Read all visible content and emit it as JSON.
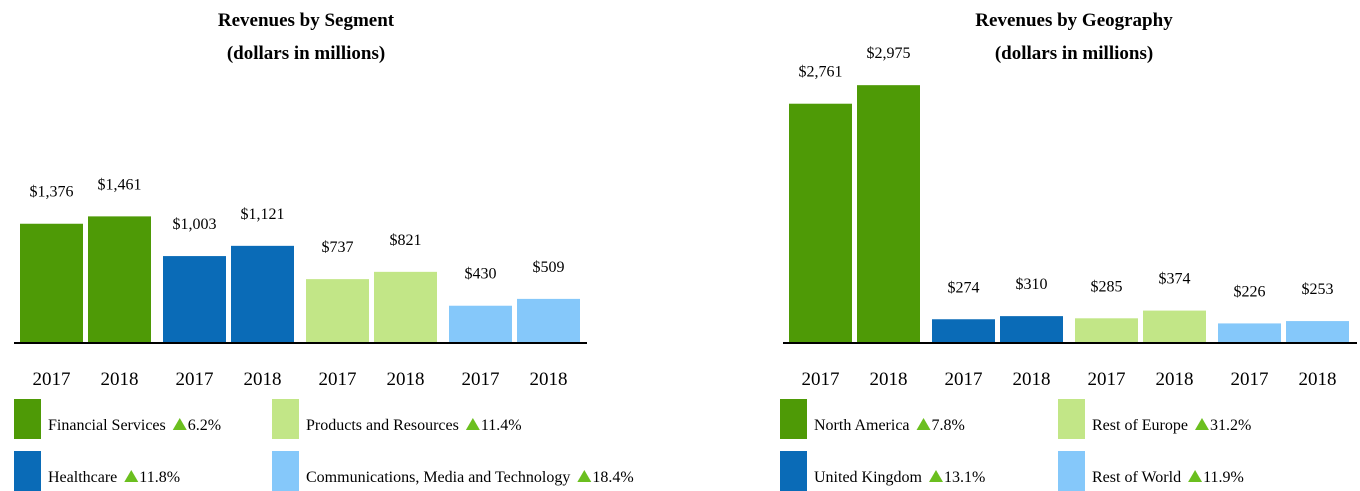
{
  "chart_data": [
    {
      "type": "bar",
      "title_line1": "Revenues by Segment",
      "title_line2": "(dollars in millions)",
      "years": [
        "2017",
        "2018"
      ],
      "ylim": [
        0,
        3000
      ],
      "series": [
        {
          "name": "Financial Services",
          "color": "#4E9A06",
          "values": [
            1376,
            1461
          ],
          "labels": [
            "$1,376",
            "$1,461"
          ],
          "growth": "6.2%"
        },
        {
          "name": "Healthcare",
          "color": "#0A6BB7",
          "values": [
            1003,
            1121
          ],
          "labels": [
            "$1,003",
            "$1,121"
          ],
          "growth": "11.8%"
        },
        {
          "name": "Products and Resources",
          "color": "#C2E687",
          "values": [
            737,
            821
          ],
          "labels": [
            "$737",
            "$821"
          ],
          "growth": "11.4%"
        },
        {
          "name": "Communications, Media and Technology",
          "color": "#85C8FA",
          "values": [
            430,
            509
          ],
          "labels": [
            "$430",
            "$509"
          ],
          "growth": "18.4%"
        }
      ]
    },
    {
      "type": "bar",
      "title_line1": "Revenues by Geography",
      "title_line2": "(dollars in millions)",
      "years": [
        "2017",
        "2018"
      ],
      "ylim": [
        0,
        3000
      ],
      "series": [
        {
          "name": "North America",
          "color": "#4E9A06",
          "values": [
            2761,
            2975
          ],
          "labels": [
            "$2,761",
            "$2,975"
          ],
          "growth": "7.8%"
        },
        {
          "name": "United Kingdom",
          "color": "#0A6BB7",
          "values": [
            274,
            310
          ],
          "labels": [
            "$274",
            "$310"
          ],
          "growth": "13.1%"
        },
        {
          "name": "Rest of Europe",
          "color": "#C2E687",
          "values": [
            285,
            374
          ],
          "labels": [
            "$285",
            "$374"
          ],
          "growth": "31.2%"
        },
        {
          "name": "Rest of World",
          "color": "#85C8FA",
          "values": [
            226,
            253
          ],
          "labels": [
            "$226",
            "$253"
          ],
          "growth": "11.9%"
        }
      ]
    }
  ]
}
